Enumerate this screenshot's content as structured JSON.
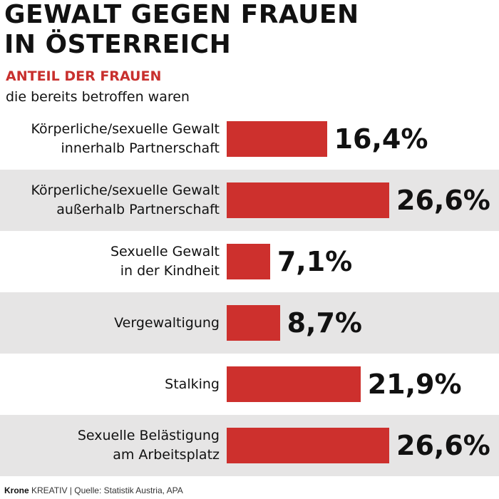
{
  "title_line1": "GEWALT GEGEN FRAUEN",
  "title_line2": "IN ÖSTERREICH",
  "subtitle": "ANTEIL DER FRAUEN",
  "subtitle2": "die bereits betroffen waren",
  "footer": {
    "brand": "Krone",
    "brand_suffix": " KREATIV",
    "source": " | Quelle: Statistik Austria, APA"
  },
  "colors": {
    "bar": "#cd302d",
    "subtitle": "#c8302e",
    "shade": "#e6e5e5"
  },
  "chart_data": {
    "type": "bar",
    "orientation": "horizontal",
    "categories": [
      "Körperliche/sexuelle Gewalt\ninnerhalb Partnerschaft",
      "Körperliche/sexuelle Gewalt\naußerhalb Partnerschaft",
      "Sexuelle Gewalt\nin der Kindheit",
      "Vergewaltigung",
      "Stalking",
      "Sexuelle Belästigung\nam Arbeitsplatz"
    ],
    "values": [
      16.4,
      26.6,
      7.1,
      8.7,
      21.9,
      26.6
    ],
    "value_labels": [
      "16,4%",
      "26,6%",
      "7,1%",
      "8,7%",
      "21,9%",
      "26,6%"
    ],
    "unit": "%",
    "xlim": [
      0,
      26.6
    ],
    "grid": false,
    "legend": "none"
  }
}
